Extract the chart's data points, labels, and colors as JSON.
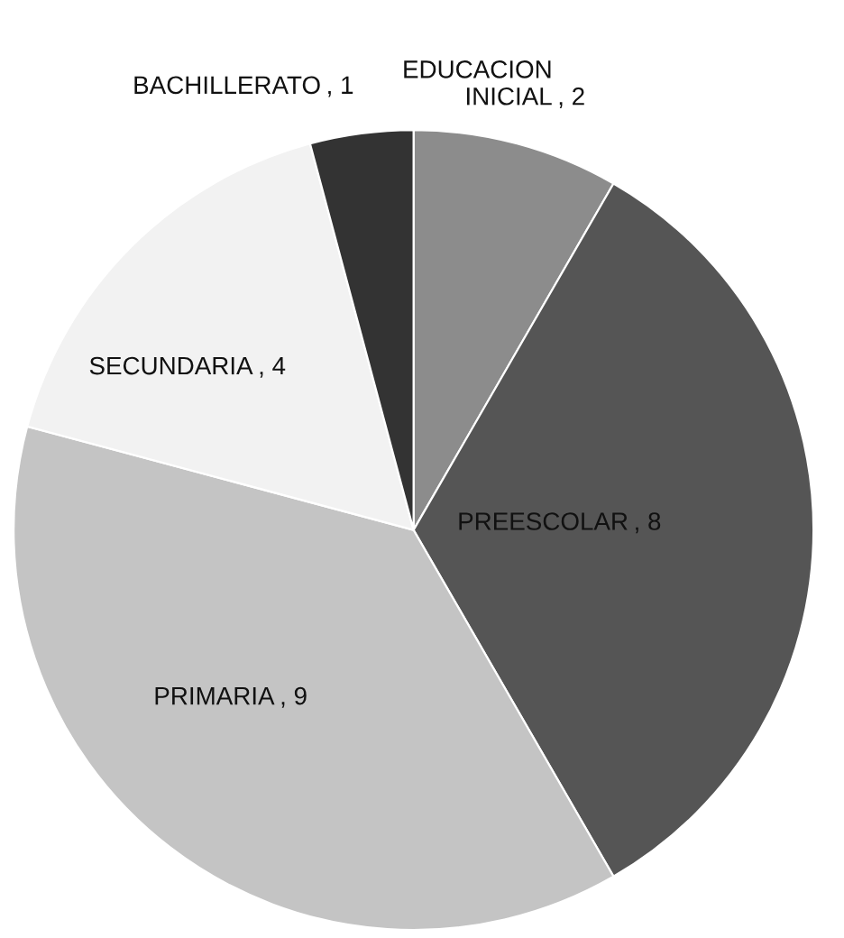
{
  "chart_data": {
    "type": "pie",
    "categories": [
      "EDUCACION INICIAL",
      "PREESCOLAR",
      "PRIMARIA",
      "SECUNDARIA",
      "BACHILLERATO"
    ],
    "values": [
      2,
      8,
      9,
      4,
      1
    ],
    "value_labels": [
      ", 2",
      ", 8",
      ", 9",
      ", 4",
      ", 1"
    ],
    "colors": [
      "#8c8c8c",
      "#555555",
      "#c4c4c4",
      "#f2f2f2",
      "#333333"
    ]
  }
}
